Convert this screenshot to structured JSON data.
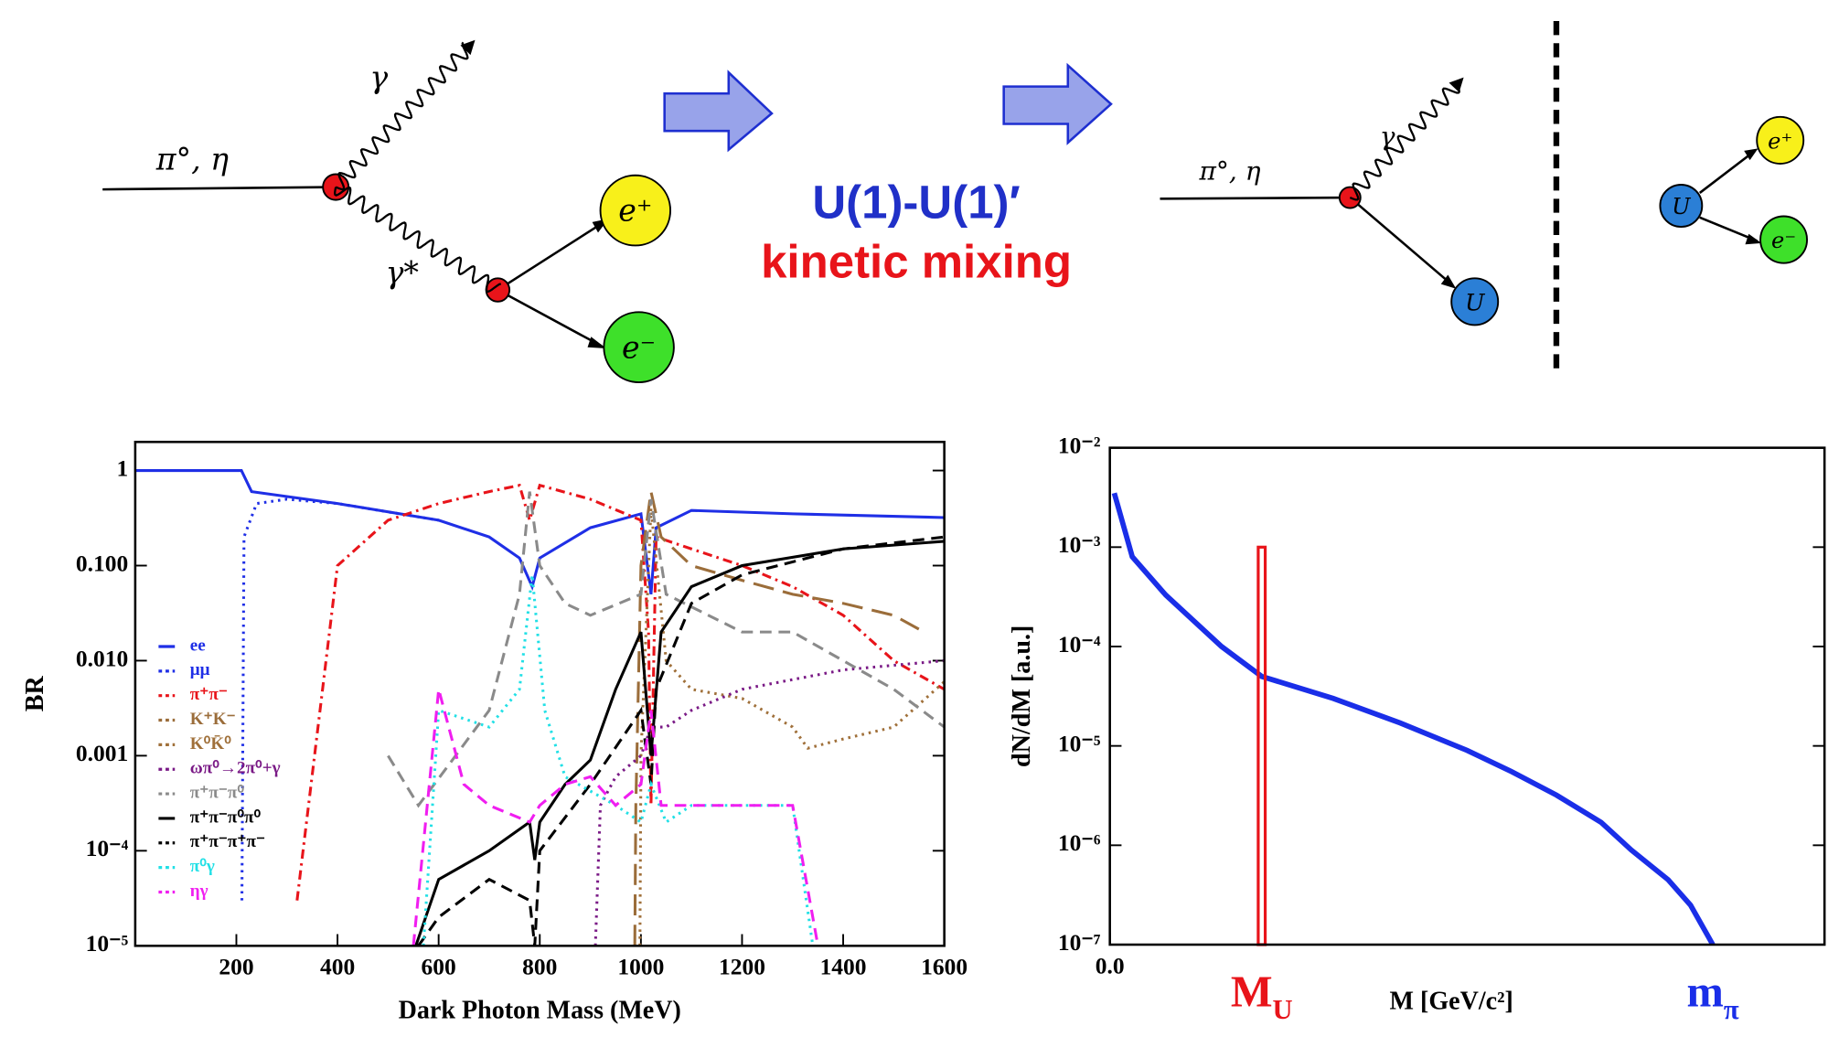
{
  "diagrams": {
    "left": {
      "incoming": "π°, η",
      "photon": "γ",
      "virtual_photon": "γ*",
      "positron": "e⁺",
      "electron": "e⁻"
    },
    "middle": {
      "line1": "U(1)-U(1)′",
      "line2": "kinetic mixing"
    },
    "right": {
      "incoming": "π°, η",
      "photon": "γ",
      "boson": "U",
      "decay_boson": "U",
      "positron": "e⁺",
      "electron": "e⁻"
    }
  },
  "chart_data": [
    {
      "type": "line",
      "log_y": true,
      "x_label": "Dark Photon  Mass (MeV)",
      "y_label": "BR",
      "xlim": [
        0,
        1600
      ],
      "xticks": [
        200,
        400,
        600,
        800,
        1000,
        1200,
        1400,
        1600
      ],
      "ylim": [
        1e-05,
        2
      ],
      "yticks": [
        1,
        {
          "value": 0.1,
          "label": "0.100"
        },
        {
          "value": 0.01,
          "label": "0.010"
        },
        0.001,
        {
          "value": 0.0001,
          "label": "10⁻⁴"
        },
        {
          "value": 1e-05,
          "label": "10⁻⁵"
        }
      ],
      "series": [
        {
          "name": "ee",
          "color": "#1f2fe6",
          "dash": "solid",
          "x": [
            0,
            210,
            230,
            400,
            600,
            700,
            760,
            785,
            800,
            900,
            1000,
            1020,
            1030,
            1100,
            1300,
            1600
          ],
          "values": [
            1,
            1,
            0.6,
            0.45,
            0.3,
            0.2,
            0.12,
            0.06,
            0.12,
            0.25,
            0.35,
            0.05,
            0.25,
            0.38,
            0.35,
            0.32
          ]
        },
        {
          "name": "μμ",
          "color": "#1f2fe6",
          "dash": "dot",
          "x": [
            211,
            215,
            240,
            300,
            400,
            600
          ],
          "values": [
            3e-05,
            0.2,
            0.45,
            0.5,
            0.45,
            0.3
          ]
        },
        {
          "name": "π⁺π⁻",
          "color": "#e8141a",
          "dash": "dashdot",
          "x": [
            320,
            400,
            500,
            600,
            700,
            760,
            780,
            800,
            900,
            1000,
            1015,
            1020,
            1030,
            1100,
            1200,
            1300,
            1400,
            1500,
            1600
          ],
          "values": [
            3e-05,
            0.1,
            0.3,
            0.45,
            0.6,
            0.7,
            0.3,
            0.7,
            0.5,
            0.3,
            0.02,
            0.0003,
            0.2,
            0.15,
            0.1,
            0.06,
            0.03,
            0.01,
            0.005
          ]
        },
        {
          "name": "K⁺K⁻",
          "color": "#9b6d3a",
          "dash": "longdash",
          "x": [
            988,
            990,
            1000,
            1020,
            1040,
            1100,
            1200,
            1300,
            1400,
            1500,
            1560
          ],
          "values": [
            1e-05,
            0.0003,
            0.1,
            0.6,
            0.2,
            0.1,
            0.07,
            0.05,
            0.04,
            0.03,
            0.02
          ]
        },
        {
          "name": "K⁰K̄⁰",
          "color": "#a0703a",
          "dash": "dot",
          "x": [
            998,
            1000,
            1020,
            1050,
            1100,
            1200,
            1300,
            1330,
            1400,
            1500,
            1600
          ],
          "values": [
            1e-05,
            0.001,
            0.4,
            0.01,
            0.005,
            0.004,
            0.002,
            0.0012,
            0.0015,
            0.002,
            0.006
          ]
        },
        {
          "name": "ωπ⁰→2π⁰+γ",
          "color": "#7a1a86",
          "dash": "dot",
          "x": [
            910,
            920,
            950,
            1000,
            1020,
            1050,
            1100,
            1200,
            1400,
            1600
          ],
          "values": [
            1e-05,
            0.0003,
            0.0006,
            0.001,
            0.002,
            0.002,
            0.003,
            0.005,
            0.008,
            0.01
          ]
        },
        {
          "name": "π⁺π⁻π⁰",
          "color": "#8a8a8a",
          "dash": "dash",
          "x": [
            500,
            560,
            620,
            700,
            760,
            780,
            800,
            850,
            900,
            1000,
            1020,
            1050,
            1200,
            1300,
            1500,
            1600
          ],
          "values": [
            0.001,
            0.0003,
            0.0008,
            0.003,
            0.05,
            0.6,
            0.1,
            0.04,
            0.03,
            0.05,
            0.5,
            0.05,
            0.02,
            0.02,
            0.005,
            0.002
          ]
        },
        {
          "name": "π⁺π⁻π⁰π⁰",
          "color": "#000000",
          "dash": "solid",
          "x": [
            555,
            600,
            700,
            780,
            790,
            800,
            850,
            900,
            950,
            1000,
            1020,
            1040,
            1100,
            1200,
            1400,
            1600
          ],
          "values": [
            1e-05,
            5e-05,
            0.0001,
            0.0002,
            8e-05,
            0.0002,
            0.0005,
            0.0009,
            0.005,
            0.02,
            0.001,
            0.02,
            0.06,
            0.1,
            0.15,
            0.18
          ]
        },
        {
          "name": "π⁺π⁻π⁺π⁻",
          "color": "#000000",
          "dash": "dash",
          "x": [
            560,
            600,
            700,
            780,
            790,
            800,
            900,
            1000,
            1020,
            1030,
            1100,
            1200,
            1400,
            1600
          ],
          "values": [
            1e-05,
            2e-05,
            5e-05,
            3e-05,
            1e-05,
            0.0001,
            0.0005,
            0.003,
            0.0005,
            0.005,
            0.04,
            0.08,
            0.15,
            0.2
          ]
        },
        {
          "name": "π⁰γ",
          "color": "#22e0e6",
          "dash": "dot",
          "x": [
            570,
            600,
            700,
            760,
            785,
            810,
            850,
            950,
            1000,
            1020,
            1050,
            1100,
            1200,
            1300,
            1340
          ],
          "values": [
            1e-05,
            0.003,
            0.002,
            0.005,
            0.08,
            0.003,
            0.0006,
            0.0003,
            0.0002,
            0.0005,
            0.0002,
            0.0003,
            0.0003,
            0.0003,
            1e-05
          ]
        },
        {
          "name": "ηγ",
          "color": "#f01ef0",
          "dash": "dash",
          "x": [
            550,
            600,
            650,
            700,
            780,
            800,
            850,
            900,
            950,
            1000,
            1020,
            1040,
            1100,
            1300,
            1350
          ],
          "values": [
            1e-05,
            0.005,
            0.0005,
            0.0003,
            0.0002,
            0.0003,
            0.0005,
            0.0006,
            0.0003,
            0.0005,
            0.003,
            0.0003,
            0.0003,
            0.0003,
            1e-05
          ]
        }
      ]
    },
    {
      "type": "line",
      "log_y": true,
      "x_label": "M [GeV/c²]",
      "y_label": "dN/dM  [a.u.]",
      "xlim": [
        0,
        0.16
      ],
      "xticks": [
        {
          "value": 0,
          "label": "0.0"
        }
      ],
      "ylim": [
        1e-07,
        0.01
      ],
      "yticks": [
        {
          "value": 0.01,
          "label": "10⁻²"
        },
        {
          "value": 0.001,
          "label": "10⁻³"
        },
        {
          "value": 0.0001,
          "label": "10⁻⁴"
        },
        {
          "value": 1e-05,
          "label": "10⁻⁵"
        },
        {
          "value": 1e-06,
          "label": "10⁻⁶"
        },
        {
          "value": 1e-07,
          "label": "10⁻⁷"
        }
      ],
      "series": [
        {
          "color": "#1a2ee8",
          "dash": "solid",
          "x": [
            0.001,
            0.005,
            0.0125,
            0.025,
            0.034,
            0.05,
            0.065,
            0.08,
            0.09,
            0.1,
            0.11,
            0.1167,
            0.125,
            0.13,
            0.135
          ],
          "values": [
            0.0035,
            0.0008,
            0.00033,
            0.0001,
            5e-05,
            3e-05,
            1.7e-05,
            9e-06,
            5.5e-06,
            3.2e-06,
            1.7e-06,
            9e-07,
            4.5e-07,
            2.5e-07,
            1e-07
          ]
        }
      ],
      "peak": {
        "x": 0.034,
        "value": 0.001,
        "color": "#e8141a"
      },
      "annotations": [
        {
          "text": "M",
          "sub": "U",
          "x": 0.034,
          "color": "#e8141a"
        },
        {
          "text": "m",
          "sub": "π",
          "x": 0.135,
          "color": "#1a2ee8"
        }
      ]
    }
  ]
}
